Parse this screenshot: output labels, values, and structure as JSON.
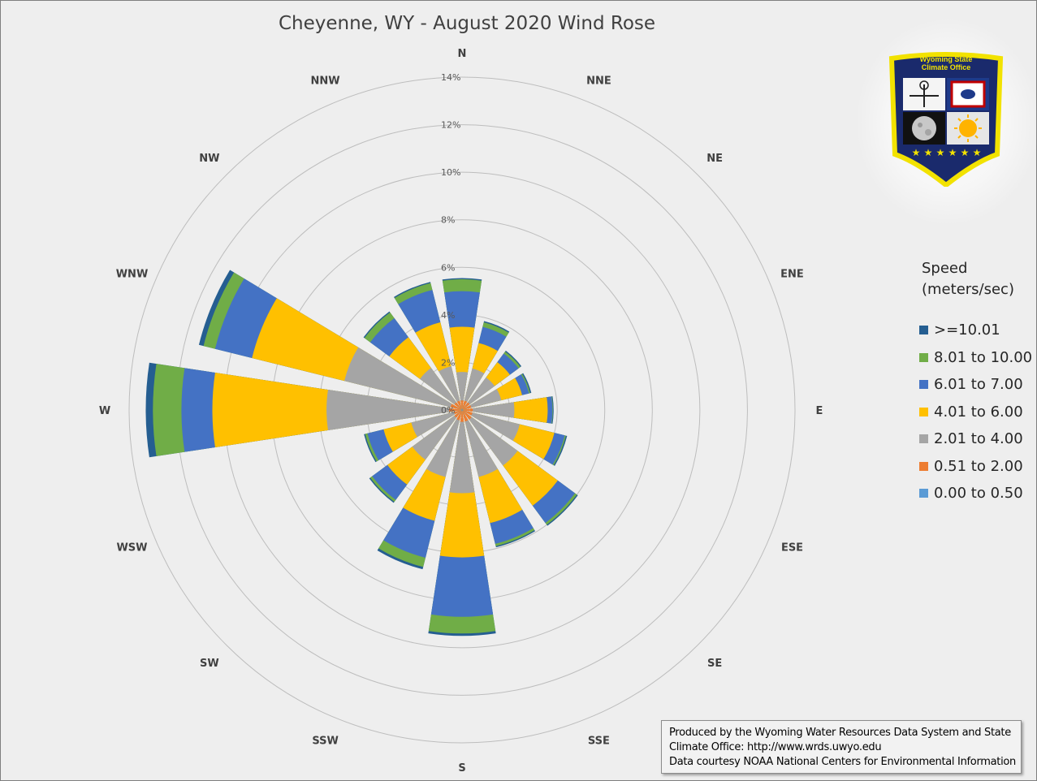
{
  "chart_data": {
    "type": "wind-rose",
    "title": "Cheyenne, WY - August 2020 Wind Rose",
    "directions": [
      "N",
      "NNE",
      "NE",
      "ENE",
      "E",
      "ESE",
      "SE",
      "SSE",
      "S",
      "SSW",
      "SW",
      "WSW",
      "W",
      "WNW",
      "NW",
      "NNW"
    ],
    "radial_ticks": [
      "0%",
      "2%",
      "4%",
      "6%",
      "8%",
      "10%",
      "12%",
      "14%"
    ],
    "radial_max": 14,
    "legend_title_line1": "Speed",
    "legend_title_line2": "(meters/sec)",
    "bins": [
      {
        "name": "0.00 to 0.50",
        "color": "#5b9bd5"
      },
      {
        "name": "0.51 to 2.00",
        "color": "#ed7d31"
      },
      {
        "name": "2.01 to 4.00",
        "color": "#a5a5a5"
      },
      {
        "name": "4.01 to 6.00",
        "color": "#ffc000"
      },
      {
        "name": "6.01 to 7.00",
        "color": "#4472c4"
      },
      {
        "name": "8.01 to 10.00",
        "color": "#70ad47"
      },
      {
        "name": ">=10.01",
        "color": "#255e91"
      }
    ],
    "cumulative": {
      "N": [
        0.05,
        0.4,
        1.6,
        3.5,
        5.0,
        5.5,
        5.55
      ],
      "NNE": [
        0.05,
        0.4,
        1.8,
        2.9,
        3.6,
        3.8,
        3.85
      ],
      "NE": [
        0.05,
        0.4,
        1.7,
        2.5,
        2.95,
        3.05,
        3.1
      ],
      "ENE": [
        0.05,
        0.4,
        1.7,
        2.6,
        2.9,
        2.95,
        3.0
      ],
      "E": [
        0.05,
        0.45,
        2.2,
        3.6,
        3.8,
        3.82,
        3.85
      ],
      "ESE": [
        0.05,
        0.45,
        2.5,
        4.0,
        4.45,
        4.5,
        4.55
      ],
      "SE": [
        0.05,
        0.5,
        2.9,
        5.0,
        5.9,
        6.0,
        6.05
      ],
      "SSE": [
        0.05,
        0.5,
        2.9,
        4.9,
        5.8,
        5.9,
        5.95
      ],
      "S": [
        0.05,
        0.5,
        3.5,
        6.2,
        8.7,
        9.4,
        9.5
      ],
      "SSW": [
        0.05,
        0.45,
        2.9,
        4.8,
        6.4,
        6.8,
        6.9
      ],
      "SW": [
        0.05,
        0.4,
        2.6,
        3.9,
        4.7,
        4.8,
        4.85
      ],
      "WSW": [
        0.05,
        0.35,
        2.2,
        3.4,
        4.1,
        4.2,
        4.25
      ],
      "W": [
        0.05,
        0.55,
        5.7,
        10.5,
        11.8,
        13.0,
        13.3
      ],
      "WNW": [
        0.05,
        0.5,
        5.1,
        9.1,
        10.7,
        11.2,
        11.4
      ],
      "NW": [
        0.05,
        0.4,
        2.2,
        3.8,
        4.8,
        5.1,
        5.15
      ],
      "NNW": [
        0.05,
        0.4,
        1.9,
        3.8,
        5.2,
        5.5,
        5.55
      ]
    }
  },
  "logo": {
    "line1": "Wyoming State",
    "line2": "Climate Office"
  },
  "credit": {
    "line1": "Produced by the Wyoming Water Resources Data System and State",
    "line2": "Climate Office: http://www.wrds.uwyo.edu",
    "line3": "Data courtesy NOAA National Centers for Environmental Information"
  }
}
